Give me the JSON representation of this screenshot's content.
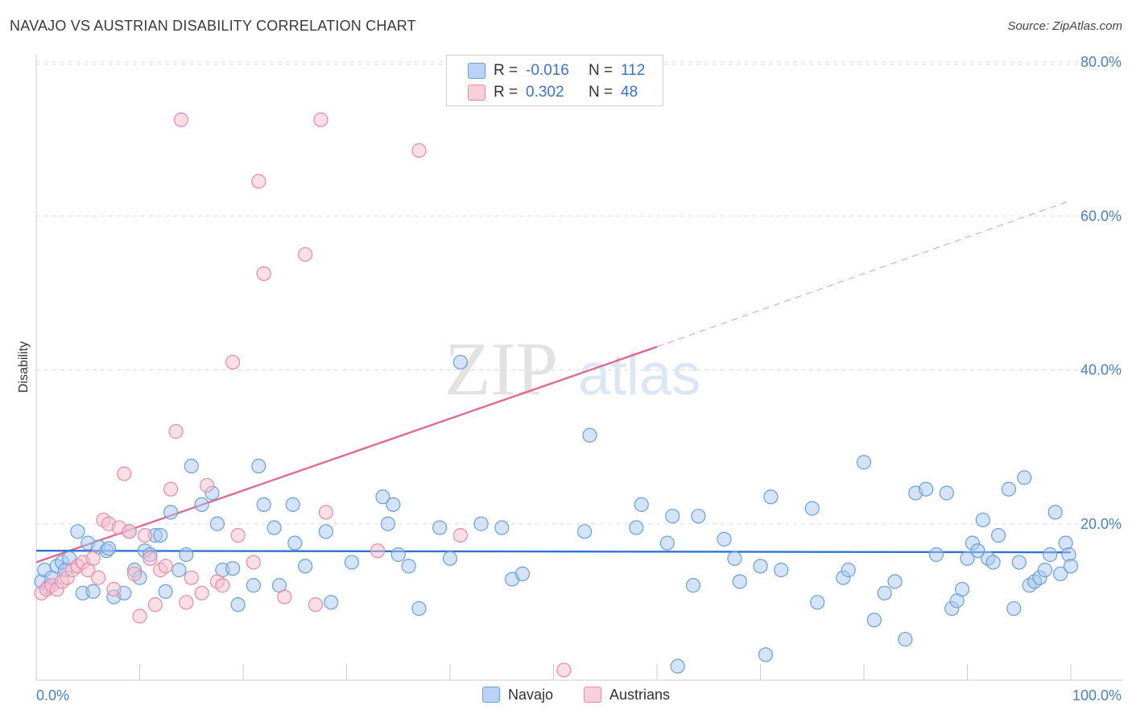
{
  "header": {
    "title": "NAVAJO VS AUSTRIAN DISABILITY CORRELATION CHART",
    "source": "Source: ZipAtlas.com"
  },
  "watermark": {
    "zip": "ZIP",
    "atlas": "atlas"
  },
  "legend": {
    "rows": [
      {
        "r_label": "R =",
        "r_value": "-0.016",
        "n_label": "N =",
        "n_value": "112"
      },
      {
        "r_label": "R =",
        "r_value": "0.302",
        "n_label": "N =",
        "n_value": "48"
      }
    ]
  },
  "bottom_legend": {
    "navajo": "Navajo",
    "austrians": "Austrians"
  },
  "colors": {
    "navajo_fill": "#a9c8f0",
    "navajo_stroke": "#6a9fd8",
    "navajo_line": "#2f73d0",
    "austrian_fill": "#f7bfcf",
    "austrian_stroke": "#e88aa8",
    "austrian_line": "#e06a92",
    "tick_label": "#4a7fc8",
    "grid": "#dddddd"
  },
  "chart_data": {
    "type": "scatter",
    "title": "NAVAJO VS AUSTRIAN DISABILITY CORRELATION CHART",
    "xlabel": "",
    "ylabel": "Disability",
    "xlim": [
      0,
      100
    ],
    "ylim": [
      0,
      80
    ],
    "x_tick_labels": [
      "0.0%",
      "100.0%"
    ],
    "y_tick_labels": [
      "20.0%",
      "40.0%",
      "60.0%",
      "80.0%"
    ],
    "y_ticks": [
      20,
      40,
      60,
      80
    ],
    "grid": true,
    "series": [
      {
        "name": "Navajo",
        "trend": {
          "x": [
            0,
            100
          ],
          "y": [
            16.5,
            16.3
          ]
        },
        "points": [
          [
            0.5,
            12.5
          ],
          [
            0.8,
            14
          ],
          [
            1.2,
            11.8
          ],
          [
            1.5,
            13
          ],
          [
            2,
            14.5
          ],
          [
            2.5,
            15
          ],
          [
            2.8,
            14
          ],
          [
            3.2,
            15.5
          ],
          [
            4,
            19
          ],
          [
            4.5,
            11
          ],
          [
            5,
            17.5
          ],
          [
            5.5,
            11.2
          ],
          [
            6,
            17
          ],
          [
            6.8,
            16.5
          ],
          [
            7,
            16.8
          ],
          [
            7.5,
            10.5
          ],
          [
            8.5,
            11
          ],
          [
            9,
            19
          ],
          [
            9.5,
            14
          ],
          [
            10,
            13
          ],
          [
            10.5,
            16.5
          ],
          [
            11,
            16
          ],
          [
            11.5,
            18.5
          ],
          [
            12,
            18.5
          ],
          [
            12.5,
            11.2
          ],
          [
            13,
            21.5
          ],
          [
            13.8,
            14
          ],
          [
            14.5,
            16
          ],
          [
            15,
            27.5
          ],
          [
            16,
            22.5
          ],
          [
            17,
            24
          ],
          [
            17.5,
            20
          ],
          [
            18,
            14
          ],
          [
            19,
            14.2
          ],
          [
            19.5,
            9.5
          ],
          [
            21,
            12
          ],
          [
            21.5,
            27.5
          ],
          [
            22,
            22.5
          ],
          [
            23,
            19.5
          ],
          [
            23.5,
            12
          ],
          [
            24.8,
            22.5
          ],
          [
            25,
            17.5
          ],
          [
            26,
            14.5
          ],
          [
            28,
            19
          ],
          [
            28.5,
            9.8
          ],
          [
            30.5,
            15
          ],
          [
            33.5,
            23.5
          ],
          [
            34,
            20
          ],
          [
            34.5,
            22.5
          ],
          [
            35,
            16
          ],
          [
            36,
            14.5
          ],
          [
            37,
            9
          ],
          [
            39,
            19.5
          ],
          [
            40,
            15.5
          ],
          [
            41,
            41
          ],
          [
            43,
            20
          ],
          [
            45,
            19.5
          ],
          [
            46,
            12.8
          ],
          [
            47,
            13.5
          ],
          [
            53,
            19
          ],
          [
            53.5,
            31.5
          ],
          [
            58,
            19.5
          ],
          [
            58.5,
            22.5
          ],
          [
            61,
            17.5
          ],
          [
            61.5,
            21
          ],
          [
            62,
            1.5
          ],
          [
            63.5,
            12
          ],
          [
            64,
            21
          ],
          [
            66.5,
            18
          ],
          [
            67.5,
            15.5
          ],
          [
            68,
            12.5
          ],
          [
            70,
            14.5
          ],
          [
            70.5,
            3
          ],
          [
            71,
            23.5
          ],
          [
            72,
            14
          ],
          [
            75,
            22
          ],
          [
            75.5,
            9.8
          ],
          [
            78,
            13
          ],
          [
            78.5,
            14
          ],
          [
            80,
            28
          ],
          [
            81,
            7.5
          ],
          [
            82,
            11
          ],
          [
            83,
            12.5
          ],
          [
            84,
            5
          ],
          [
            85,
            24
          ],
          [
            86,
            24.5
          ],
          [
            87,
            16
          ],
          [
            88,
            24
          ],
          [
            88.5,
            9
          ],
          [
            89,
            10
          ],
          [
            89.5,
            11.5
          ],
          [
            90,
            15.5
          ],
          [
            90.5,
            17.5
          ],
          [
            91,
            16.5
          ],
          [
            91.5,
            20.5
          ],
          [
            92,
            15.5
          ],
          [
            92.5,
            15
          ],
          [
            93,
            18.5
          ],
          [
            94,
            24.5
          ],
          [
            94.5,
            9
          ],
          [
            95,
            15
          ],
          [
            95.5,
            26
          ],
          [
            96,
            12
          ],
          [
            96.5,
            12.5
          ],
          [
            97,
            13
          ],
          [
            97.5,
            14
          ],
          [
            98,
            16
          ],
          [
            98.5,
            21.5
          ],
          [
            99,
            13.5
          ],
          [
            99.5,
            17.5
          ],
          [
            99.8,
            16
          ],
          [
            100,
            14.5
          ]
        ]
      },
      {
        "name": "Austrians",
        "trend": {
          "x": [
            0,
            60
          ],
          "y": [
            15,
            43
          ]
        },
        "trend_extension": {
          "x": [
            60,
            100
          ],
          "y": [
            43,
            62
          ]
        },
        "points": [
          [
            0.5,
            11
          ],
          [
            1,
            11.5
          ],
          [
            1.5,
            12
          ],
          [
            2,
            11.5
          ],
          [
            2.5,
            12.5
          ],
          [
            3,
            13
          ],
          [
            3.5,
            14
          ],
          [
            4,
            14.5
          ],
          [
            4.5,
            15
          ],
          [
            5,
            14
          ],
          [
            5.5,
            15.5
          ],
          [
            6,
            13
          ],
          [
            6.5,
            20.5
          ],
          [
            7,
            20
          ],
          [
            7.5,
            11.5
          ],
          [
            8,
            19.5
          ],
          [
            8.5,
            26.5
          ],
          [
            9,
            19
          ],
          [
            9.5,
            13.5
          ],
          [
            10,
            8
          ],
          [
            10.5,
            18.5
          ],
          [
            11,
            15.5
          ],
          [
            11.5,
            9.5
          ],
          [
            12,
            14
          ],
          [
            12.5,
            14.5
          ],
          [
            13,
            24.5
          ],
          [
            13.5,
            32
          ],
          [
            14,
            72.5
          ],
          [
            14.5,
            9.8
          ],
          [
            15,
            13
          ],
          [
            16,
            11
          ],
          [
            16.5,
            25
          ],
          [
            17.5,
            12.5
          ],
          [
            18,
            12
          ],
          [
            19,
            41
          ],
          [
            19.5,
            18.5
          ],
          [
            21,
            15
          ],
          [
            21.5,
            64.5
          ],
          [
            22,
            52.5
          ],
          [
            24,
            10.5
          ],
          [
            26,
            55
          ],
          [
            27,
            9.5
          ],
          [
            27.5,
            72.5
          ],
          [
            28,
            21.5
          ],
          [
            33,
            16.5
          ],
          [
            37,
            68.5
          ],
          [
            41,
            18.5
          ],
          [
            51,
            1
          ]
        ]
      }
    ]
  }
}
